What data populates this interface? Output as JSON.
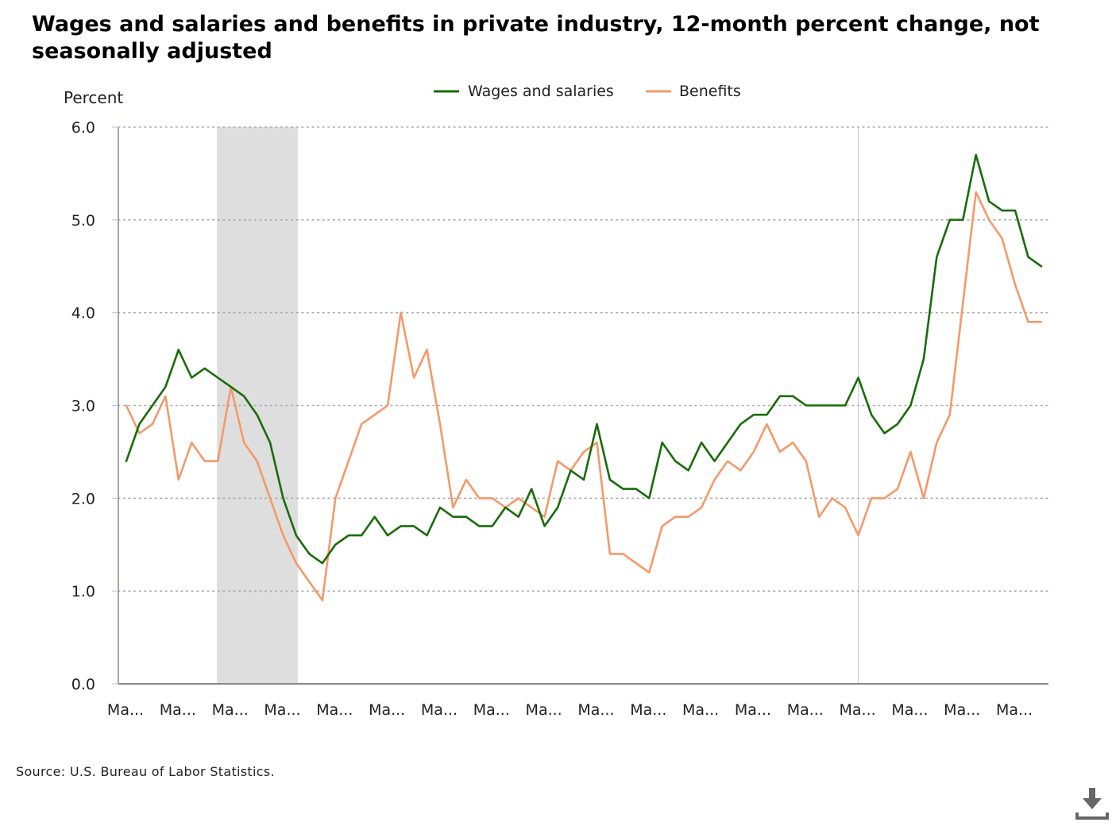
{
  "title": "Wages and salaries and benefits in private industry, 12-month percent change, not seasonally adjusted",
  "source": "Source: U.S. Bureau of Labor Statistics.",
  "download_icon": "download-icon",
  "colors": {
    "wages": "#1a6b0a",
    "benefits": "#f4996b",
    "recession": "#dedede",
    "grid": "#aaaaaa",
    "axis": "#888888"
  },
  "chart_data": {
    "type": "line",
    "ylabel": "Percent",
    "xlabel": "",
    "ylim": [
      0.0,
      6.0
    ],
    "yticks": [
      "0.0",
      "1.0",
      "2.0",
      "3.0",
      "4.0",
      "5.0",
      "6.0"
    ],
    "xtick_labels": [
      "Ma...",
      "Ma...",
      "Ma...",
      "Ma...",
      "Ma...",
      "Ma...",
      "Ma...",
      "Ma...",
      "Ma...",
      "Ma...",
      "Ma...",
      "Ma...",
      "Ma...",
      "Ma...",
      "Ma...",
      "Ma...",
      "Ma...",
      "Ma..."
    ],
    "xtick_every": 4,
    "grid": true,
    "legend_position": "top-center",
    "recession_shading": {
      "start_index": 7,
      "end_index": 13
    },
    "vertical_marker_index": 56,
    "series": [
      {
        "name": "Wages and salaries",
        "values": [
          2.4,
          2.8,
          3.0,
          3.2,
          3.6,
          3.3,
          3.4,
          3.3,
          3.2,
          3.1,
          2.9,
          2.6,
          2.0,
          1.6,
          1.4,
          1.3,
          1.5,
          1.6,
          1.6,
          1.8,
          1.6,
          1.7,
          1.7,
          1.6,
          1.9,
          1.8,
          1.8,
          1.7,
          1.7,
          1.9,
          1.8,
          2.1,
          1.7,
          1.9,
          2.3,
          2.2,
          2.8,
          2.2,
          2.1,
          2.1,
          2.0,
          2.6,
          2.4,
          2.3,
          2.6,
          2.4,
          2.6,
          2.8,
          2.9,
          2.9,
          3.1,
          3.1,
          3.0,
          3.0,
          3.0,
          3.0,
          3.3,
          2.9,
          2.7,
          2.8,
          3.0,
          3.5,
          4.6,
          5.0,
          5.0,
          5.7,
          5.2,
          5.1,
          5.1,
          4.6,
          4.5
        ]
      },
      {
        "name": "Benefits",
        "values": [
          3.0,
          2.7,
          2.8,
          3.1,
          2.2,
          2.6,
          2.4,
          2.4,
          3.2,
          2.6,
          2.4,
          2.0,
          1.6,
          1.3,
          1.1,
          0.9,
          2.0,
          2.4,
          2.8,
          2.9,
          3.0,
          4.0,
          3.3,
          3.6,
          2.8,
          1.9,
          2.2,
          2.0,
          2.0,
          1.9,
          2.0,
          1.9,
          1.8,
          2.4,
          2.3,
          2.5,
          2.6,
          1.4,
          1.4,
          1.3,
          1.2,
          1.7,
          1.8,
          1.8,
          1.9,
          2.2,
          2.4,
          2.3,
          2.5,
          2.8,
          2.5,
          2.6,
          2.4,
          1.8,
          2.0,
          1.9,
          1.6,
          2.0,
          2.0,
          2.1,
          2.5,
          2.0,
          2.6,
          2.9,
          4.1,
          5.3,
          5.0,
          4.8,
          4.3,
          3.9,
          3.9
        ]
      }
    ]
  }
}
